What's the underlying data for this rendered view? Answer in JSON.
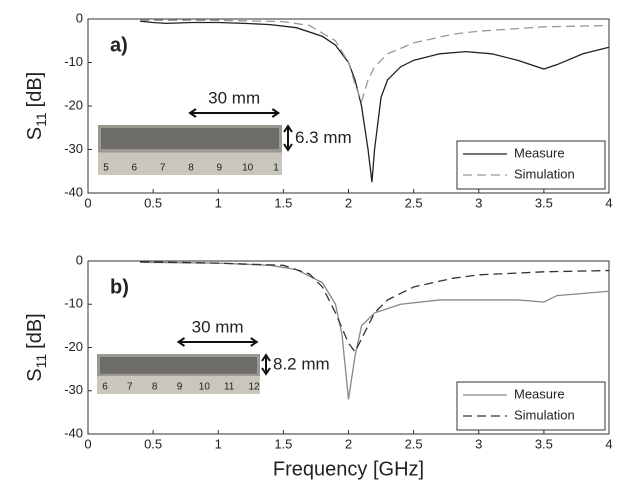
{
  "chart_data": [
    {
      "type": "line",
      "panel_label": "a)",
      "ylabel": {
        "main": "S",
        "sub": "11",
        "unit": "[dB]"
      },
      "xlim": [
        0,
        4
      ],
      "ylim": [
        -40,
        0
      ],
      "xticks": [
        0,
        0.5,
        1,
        1.5,
        2,
        2.5,
        3,
        3.5,
        4
      ],
      "yticks": [
        -40,
        -30,
        -20,
        -10,
        0
      ],
      "legend": "lower right",
      "annotations": {
        "width": "30 mm",
        "height": "6.3 mm",
        "ruler": [
          "5",
          "6",
          "7",
          "8",
          "9",
          "10",
          "1"
        ]
      },
      "series": [
        {
          "name": "Measure",
          "color": "#222222",
          "dash": false,
          "x": [
            0.4,
            0.5,
            0.6,
            0.8,
            1.0,
            1.2,
            1.4,
            1.6,
            1.8,
            1.9,
            2.0,
            2.05,
            2.1,
            2.15,
            2.18,
            2.2,
            2.25,
            2.3,
            2.4,
            2.5,
            2.7,
            2.9,
            3.1,
            3.3,
            3.5,
            3.6,
            3.8,
            4.0
          ],
          "values": [
            -0.5,
            -0.8,
            -1,
            -0.8,
            -0.8,
            -1,
            -1.3,
            -2,
            -4,
            -6,
            -10,
            -14,
            -20,
            -30,
            -37.5,
            -30,
            -18,
            -14,
            -11,
            -9.5,
            -8,
            -7.5,
            -8,
            -9.5,
            -11.5,
            -10.5,
            -8,
            -6.5
          ]
        },
        {
          "name": "Simulation",
          "color": "#999999",
          "dash": true,
          "x": [
            0.4,
            1.0,
            1.5,
            1.7,
            1.9,
            2.0,
            2.05,
            2.1,
            2.15,
            2.2,
            2.3,
            2.5,
            2.8,
            3.0,
            3.5,
            4.0
          ],
          "values": [
            -0.3,
            -0.3,
            -0.6,
            -1.5,
            -5,
            -10,
            -15,
            -19,
            -14,
            -11,
            -8,
            -5.5,
            -3.5,
            -2.8,
            -1.8,
            -1.5
          ]
        }
      ]
    },
    {
      "type": "line",
      "panel_label": "b)",
      "ylabel": {
        "main": "S",
        "sub": "11",
        "unit": "[dB]"
      },
      "xlabel": "Frequency [GHz]",
      "xlim": [
        0,
        4
      ],
      "ylim": [
        -40,
        0
      ],
      "xticks": [
        0,
        0.5,
        1,
        1.5,
        2,
        2.5,
        3,
        3.5,
        4
      ],
      "yticks": [
        -40,
        -30,
        -20,
        -10,
        0
      ],
      "legend": "lower right",
      "annotations": {
        "width": "30 mm",
        "height": "8.2 mm",
        "ruler": [
          "6",
          "7",
          "8",
          "9",
          "10",
          "11",
          "12"
        ]
      },
      "series": [
        {
          "name": "Measure",
          "color": "#888888",
          "dash": false,
          "x": [
            0.4,
            1.0,
            1.4,
            1.6,
            1.8,
            1.9,
            1.95,
            2.0,
            2.05,
            2.1,
            2.2,
            2.4,
            2.7,
            3.0,
            3.3,
            3.5,
            3.6,
            4.0
          ],
          "values": [
            -0.3,
            -0.5,
            -1,
            -2,
            -5,
            -10,
            -17,
            -32,
            -22,
            -15,
            -12,
            -10,
            -9,
            -9,
            -9,
            -9.5,
            -8,
            -7
          ]
        },
        {
          "name": "Simulation",
          "color": "#333333",
          "dash": true,
          "x": [
            0.4,
            1.0,
            1.5,
            1.7,
            1.8,
            1.9,
            2.0,
            2.05,
            2.1,
            2.2,
            2.3,
            2.5,
            2.8,
            3.0,
            3.5,
            4.0
          ],
          "values": [
            -0.2,
            -0.5,
            -1,
            -3,
            -6,
            -12,
            -19,
            -21,
            -18,
            -12,
            -9,
            -6,
            -4,
            -3.2,
            -2.5,
            -2.2
          ]
        }
      ]
    }
  ]
}
